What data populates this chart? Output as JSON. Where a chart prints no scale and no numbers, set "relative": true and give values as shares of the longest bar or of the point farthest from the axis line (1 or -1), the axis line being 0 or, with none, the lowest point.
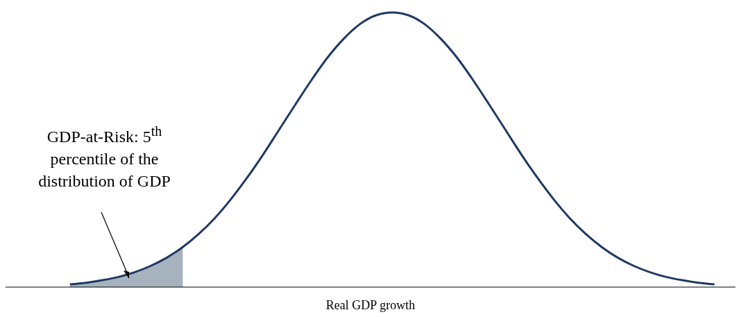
{
  "chart_data": {
    "type": "line",
    "relative": true,
    "xlabel": "Real GDP growth",
    "marker": "none",
    "categories": [
      null,
      null,
      null,
      null,
      null,
      null,
      null,
      null,
      null,
      null,
      null,
      null,
      null,
      null,
      null,
      null,
      null,
      null,
      null,
      null,
      null,
      null,
      null,
      null,
      null,
      null,
      null,
      null,
      null,
      null,
      null,
      null,
      null,
      null,
      null,
      null,
      null,
      null,
      null,
      null,
      null
    ],
    "series": [
      {
        "type": "area",
        "color": "#a6b2bd",
        "values": [
          0.01,
          0.016,
          0.025,
          0.037,
          0.054,
          0.077,
          0.107,
          0.146,
          null,
          null,
          null,
          null,
          null,
          null,
          null,
          null,
          null,
          null,
          null,
          null,
          null,
          null,
          null,
          null,
          null,
          null,
          null,
          null,
          null,
          null,
          null,
          null,
          null,
          null,
          null,
          null,
          null,
          null,
          null,
          null,
          null
        ]
      },
      {
        "type": "line",
        "color": "#1f3864",
        "values": [
          0.01,
          0.016,
          0.025,
          0.037,
          0.054,
          0.077,
          0.107,
          0.146,
          0.194,
          0.252,
          0.321,
          0.399,
          0.484,
          0.575,
          0.666,
          0.755,
          0.837,
          0.905,
          0.958,
          0.99,
          1,
          0.99,
          0.958,
          0.905,
          0.837,
          0.755,
          0.666,
          0.575,
          0.484,
          0.399,
          0.321,
          0.252,
          0.194,
          0.146,
          0.107,
          0.077,
          0.054,
          0.037,
          0.025,
          0.016,
          0.01
        ]
      }
    ],
    "annotations": [
      "GDP-at-Risk: 5$^{th}$ percentile of the distribution of GDP"
    ]
  }
}
